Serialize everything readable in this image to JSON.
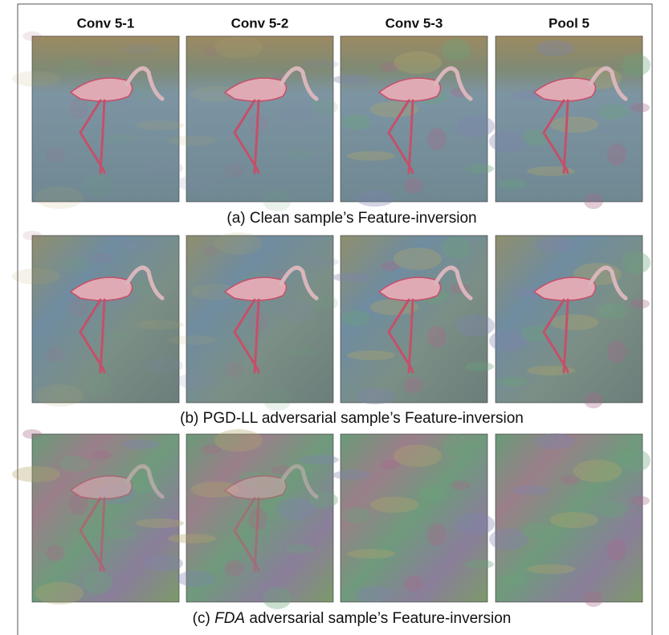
{
  "figure": {
    "columns": [
      "Conv 5-1",
      "Conv 5-2",
      "Conv 5-3",
      "Pool 5"
    ],
    "captions": {
      "a": "(a) Clean sample’s Feature-inversion",
      "b": "(b) PGD-LL adversarial sample’s Feature-inversion",
      "c": {
        "prefix": "(c) ",
        "emphasis": "FDA",
        "suffix": " adversarial sample’s Feature-inversion"
      }
    }
  }
}
